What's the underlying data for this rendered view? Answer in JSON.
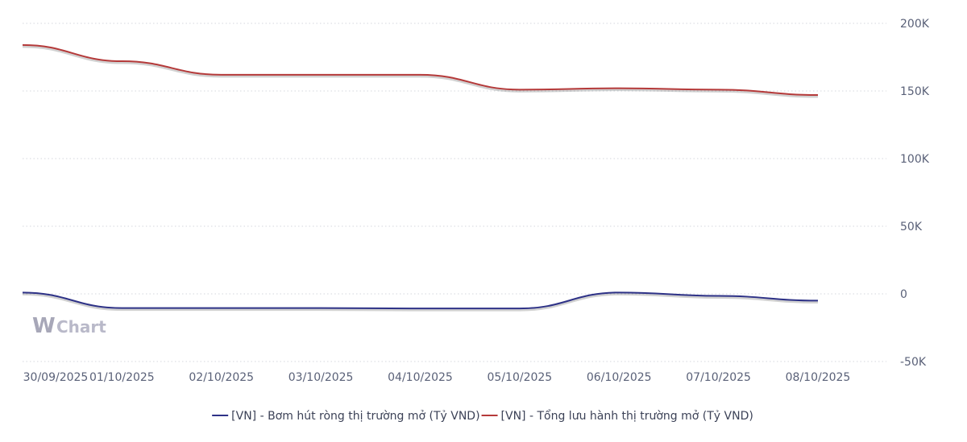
{
  "watermark": {
    "w": "W",
    "text": "Chart"
  },
  "chart_data": {
    "type": "line",
    "title": "",
    "xlabel": "",
    "ylabel": "",
    "x": [
      "30/09/2025",
      "01/10/2025",
      "02/10/2025",
      "03/10/2025",
      "04/10/2025",
      "05/10/2025",
      "06/10/2025",
      "07/10/2025",
      "08/10/2025"
    ],
    "ylim": [
      -50000,
      200000
    ],
    "yticks": [
      -50000,
      0,
      50000,
      100000,
      150000,
      200000
    ],
    "ytick_labels": [
      "-50K",
      "0",
      "50K",
      "100K",
      "150K",
      "200K"
    ],
    "grid": true,
    "legend_position": "bottom",
    "series": [
      {
        "name": "[VN] - Bơm hút ròng thị trường mở (Tỷ VND)",
        "color": "#2e3287",
        "values": [
          1000,
          -10500,
          -10500,
          -10500,
          -10800,
          -10800,
          1000,
          -1500,
          -5000
        ]
      },
      {
        "name": "[VN] - Tổng lưu hành thị trường mở (Tỷ VND)",
        "color": "#b53a3a",
        "values": [
          184000,
          172000,
          162000,
          162000,
          162000,
          151000,
          152000,
          151000,
          147000
        ]
      }
    ]
  }
}
